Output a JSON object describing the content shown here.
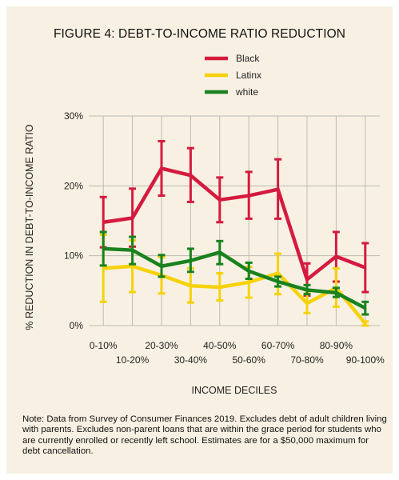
{
  "title": "FIGURE 4: DEBT-TO-INCOME RATIO REDUCTION",
  "note": "Note: Data from Survey of Consumer Finances 2019. Excludes debt of adult children living with parents. Excludes non-parent loans that are within the grace period for students who are currently enrolled or recently left school. Estimates are for a $50,000 maximum for debt cancellation.",
  "chart_data": {
    "type": "line",
    "title": "FIGURE 4: DEBT-TO-INCOME RATIO REDUCTION",
    "xlabel": "INCOME DECILES",
    "ylabel": "% REDUCTION IN DEBT-TO-INCOME RATIO",
    "ylim": [
      0,
      30
    ],
    "yticks": [
      "0%",
      "10%",
      "20%",
      "30%"
    ],
    "ytick_values": [
      0,
      10,
      20,
      30
    ],
    "categories": [
      "0-10%",
      "10-20%",
      "20-30%",
      "30-40%",
      "40-50%",
      "50-60%",
      "60-70%",
      "70-80%",
      "80-90%",
      "90-100%"
    ],
    "grid": true,
    "legend_position": "top-center",
    "error_bars": true,
    "series": [
      {
        "name": "Black",
        "color": "#d41b3f",
        "values": [
          14.8,
          15.4,
          22.5,
          21.5,
          18.0,
          18.6,
          19.5,
          6.6,
          9.9,
          8.3
        ],
        "lower": [
          11.2,
          11.3,
          18.6,
          17.7,
          14.8,
          15.3,
          15.3,
          4.3,
          6.3,
          4.8
        ],
        "upper": [
          18.4,
          19.6,
          26.4,
          25.4,
          21.2,
          22.0,
          23.8,
          8.9,
          13.4,
          11.8
        ]
      },
      {
        "name": "Latinx",
        "color": "#f6d20c",
        "values": [
          8.2,
          8.5,
          7.2,
          5.7,
          5.5,
          6.2,
          7.5,
          3.2,
          5.4,
          0.3
        ],
        "lower": [
          3.4,
          4.8,
          4.6,
          3.3,
          3.6,
          4.0,
          4.5,
          1.8,
          2.7,
          0.0
        ],
        "upper": [
          13.0,
          12.2,
          9.8,
          8.2,
          7.5,
          8.4,
          10.3,
          4.6,
          8.2,
          0.6
        ]
      },
      {
        "name": "white",
        "color": "#19821e",
        "values": [
          11.0,
          10.8,
          8.5,
          9.3,
          10.5,
          7.8,
          6.3,
          5.1,
          4.7,
          2.5
        ],
        "lower": [
          8.6,
          8.8,
          7.0,
          7.7,
          8.8,
          6.7,
          5.6,
          4.5,
          4.1,
          1.6
        ],
        "upper": [
          13.4,
          12.7,
          10.1,
          11.0,
          12.1,
          9.0,
          7.0,
          5.8,
          5.4,
          3.4
        ]
      }
    ]
  }
}
